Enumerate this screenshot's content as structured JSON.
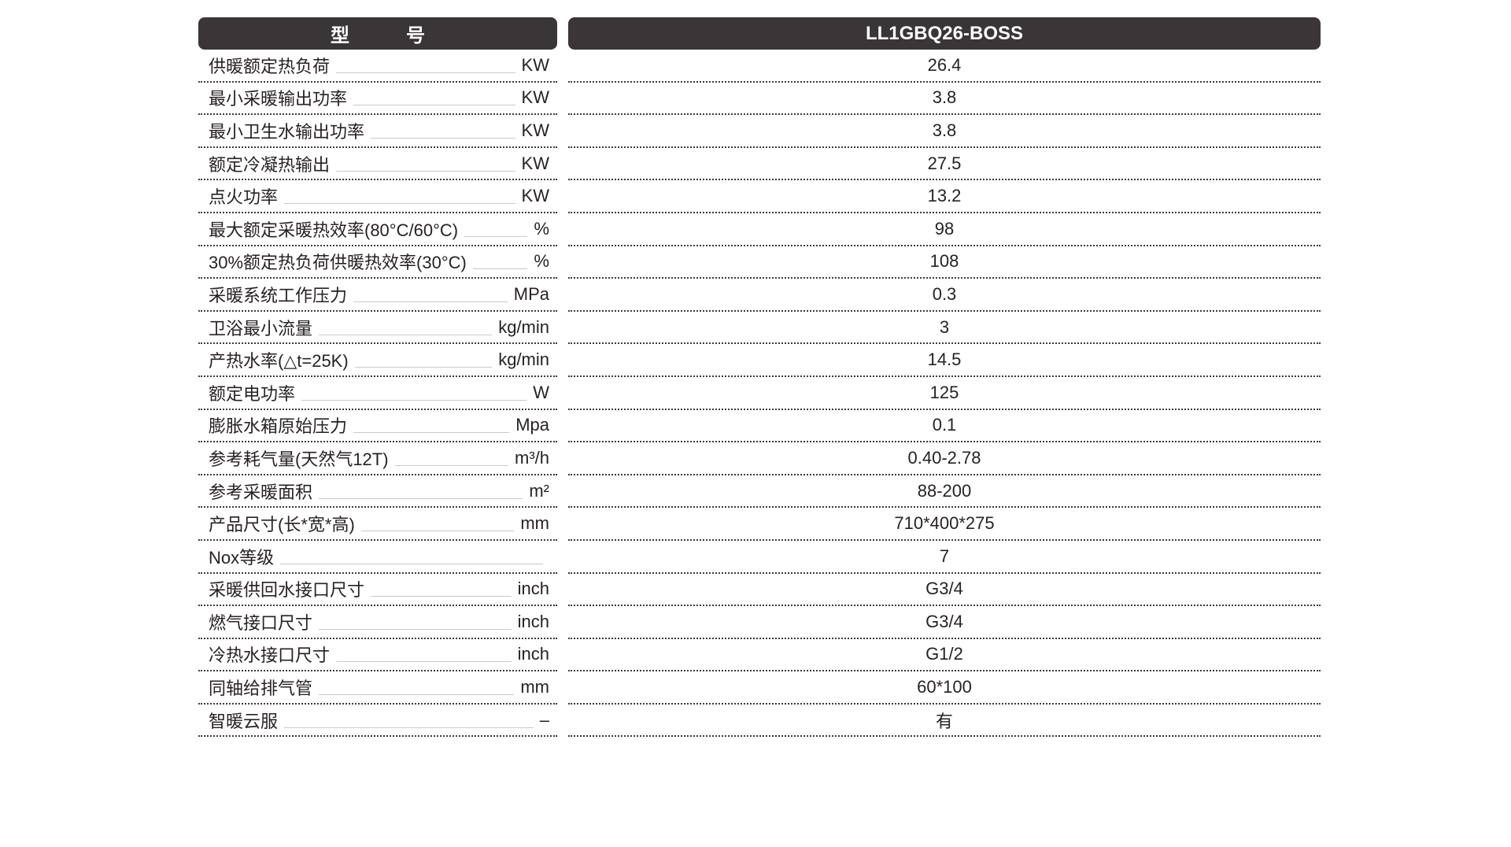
{
  "table": {
    "header": {
      "model_label": "型　　　号",
      "model_value": "LL1GBQ26-BOSS"
    },
    "rows": [
      {
        "label": "供暖额定热负荷",
        "unit": "KW",
        "value": "26.4"
      },
      {
        "label": "最小采暖输出功率",
        "unit": "KW",
        "value": "3.8"
      },
      {
        "label": "最小卫生水输出功率",
        "unit": "KW",
        "value": "3.8"
      },
      {
        "label": "额定冷凝热输出",
        "unit": "KW",
        "value": "27.5"
      },
      {
        "label": "点火功率",
        "unit": "KW",
        "value": "13.2"
      },
      {
        "label": "最大额定采暖热效率(80°C/60°C)",
        "unit": "%",
        "value": "98"
      },
      {
        "label": "30%额定热负荷供暖热效率(30°C)",
        "unit": "%",
        "value": "108"
      },
      {
        "label": "采暖系统工作压力",
        "unit": "MPa",
        "value": "0.3"
      },
      {
        "label": "卫浴最小流量",
        "unit": "kg/min",
        "value": "3"
      },
      {
        "label": "产热水率(△t=25K)",
        "unit": "kg/min",
        "value": "14.5"
      },
      {
        "label": "额定电功率",
        "unit": "W",
        "value": "125"
      },
      {
        "label": "膨胀水箱原始压力",
        "unit": "Mpa",
        "value": "0.1"
      },
      {
        "label": "参考耗气量(天然气12T)",
        "unit": "m³/h",
        "value": "0.40-2.78"
      },
      {
        "label": "参考采暖面积",
        "unit": "m²",
        "value": "88-200"
      },
      {
        "label": "产品尺寸(长*宽*高)",
        "unit": "mm",
        "value": "710*400*275"
      },
      {
        "label": "Nox等级",
        "unit": "",
        "value": "7"
      },
      {
        "label": "采暖供回水接口尺寸",
        "unit": "inch",
        "value": "G3/4"
      },
      {
        "label": "燃气接口尺寸",
        "unit": "inch",
        "value": "G3/4"
      },
      {
        "label": "冷热水接口尺寸",
        "unit": "inch",
        "value": "G1/2"
      },
      {
        "label": "同轴给排气管",
        "unit": "mm",
        "value": "60*100"
      },
      {
        "label": "智暖云服",
        "unit": "–",
        "value": "有"
      }
    ]
  },
  "colors": {
    "header_bg": "#3a3536",
    "text": "#272223",
    "line_dotted": "#3e393a",
    "leader": "#ccc9c8"
  }
}
